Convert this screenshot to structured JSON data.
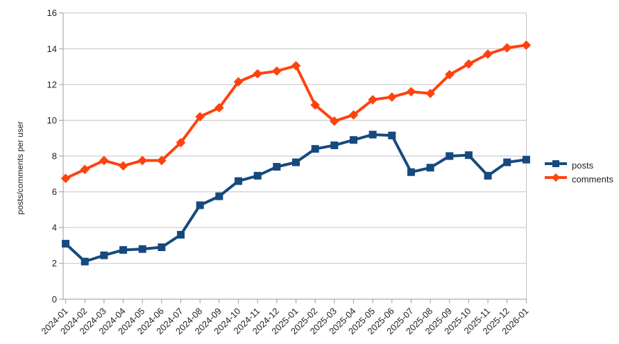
{
  "chart_data": {
    "type": "line",
    "title": "",
    "xlabel": "",
    "ylabel": "posts/comments per user",
    "ylim": [
      0,
      16
    ],
    "yticks": [
      0,
      2,
      4,
      6,
      8,
      10,
      12,
      14,
      16
    ],
    "grid": true,
    "legend_position": "right",
    "categories": [
      "2024-01",
      "2024-02",
      "2024-03",
      "2024-04",
      "2024-05",
      "2024-06",
      "2024-07",
      "2024-08",
      "2024-09",
      "2024-10",
      "2024-11",
      "2024-12",
      "2025-01",
      "2025-02",
      "2025-03",
      "2025-04",
      "2025-05",
      "2025-06",
      "2025-07",
      "2025-08",
      "2025-09",
      "2025-10",
      "2025-11",
      "2025-12",
      "2026-01"
    ],
    "series": [
      {
        "name": "posts",
        "marker": "square",
        "color": "#17497e",
        "values": [
          3.1,
          2.1,
          2.45,
          2.75,
          2.8,
          2.9,
          3.6,
          5.25,
          5.75,
          6.6,
          6.9,
          7.4,
          7.65,
          8.4,
          8.6,
          8.9,
          9.2,
          9.15,
          7.1,
          7.35,
          8.0,
          8.05,
          6.9,
          7.65,
          7.8
        ]
      },
      {
        "name": "comments",
        "marker": "diamond",
        "color": "#ff420e",
        "values": [
          6.75,
          7.25,
          7.75,
          7.45,
          7.75,
          7.75,
          8.75,
          10.2,
          10.7,
          12.15,
          12.6,
          12.75,
          13.05,
          10.85,
          9.95,
          10.3,
          11.15,
          11.3,
          11.6,
          11.5,
          12.55,
          13.15,
          13.7,
          14.05,
          14.2
        ]
      }
    ],
    "colors": {
      "grid": "#c3c3c3",
      "axis": "#9b9b9b",
      "text": "#222222"
    }
  }
}
